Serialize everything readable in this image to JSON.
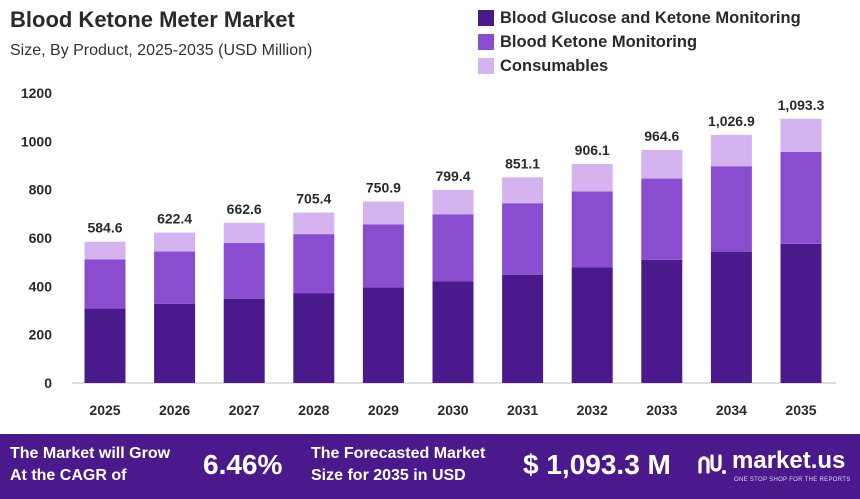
{
  "header": {
    "title": "Blood Ketone Meter Market",
    "subtitle": "Size, By Product, 2025-2035 (USD Million)"
  },
  "colors": {
    "series_1": "#4a1a8c",
    "series_2": "#8a4dcf",
    "series_3": "#d4b3ee",
    "footer_bg": "#4a1a8c"
  },
  "chart_data": {
    "type": "bar",
    "stacked": true,
    "categories": [
      "2025",
      "2026",
      "2027",
      "2028",
      "2029",
      "2030",
      "2031",
      "2032",
      "2033",
      "2034",
      "2035"
    ],
    "series": [
      {
        "name": "Blood Glucose and Ketone Monitoring",
        "values": [
          308,
          328,
          348,
          372,
          396,
          420,
          448,
          478,
          510,
          542,
          576
        ]
      },
      {
        "name": "Blood Ketone Monitoring",
        "values": [
          203,
          216,
          232,
          244,
          260,
          278,
          296,
          315,
          336,
          355,
          380
        ]
      },
      {
        "name": "Consumables",
        "values": [
          73.6,
          78.4,
          82.6,
          89.4,
          94.9,
          101.4,
          107.1,
          113.1,
          118.6,
          129.9,
          137.3
        ]
      }
    ],
    "total_labels": [
      "584.6",
      "622.4",
      "662.6",
      "705.4",
      "750.9",
      "799.4",
      "851.1",
      "906.1",
      "964.6",
      "1,026.9",
      "1,093.3"
    ],
    "yticks": [
      0,
      200,
      400,
      600,
      800,
      1000,
      1200
    ],
    "ylim": [
      0,
      1200
    ],
    "legend_position": "top-right",
    "grid": false
  },
  "footer": {
    "cagr_text_line1": "The Market will Grow",
    "cagr_text_line2": "At the CAGR of",
    "cagr_value": "6.46%",
    "forecast_text_line1": "The Forecasted Market",
    "forecast_text_line2": "Size for 2035 in USD",
    "forecast_value": "$ 1,093.3 M",
    "brand_name": "market.us",
    "brand_tagline": "ONE STOP SHOP FOR THE REPORTS"
  }
}
